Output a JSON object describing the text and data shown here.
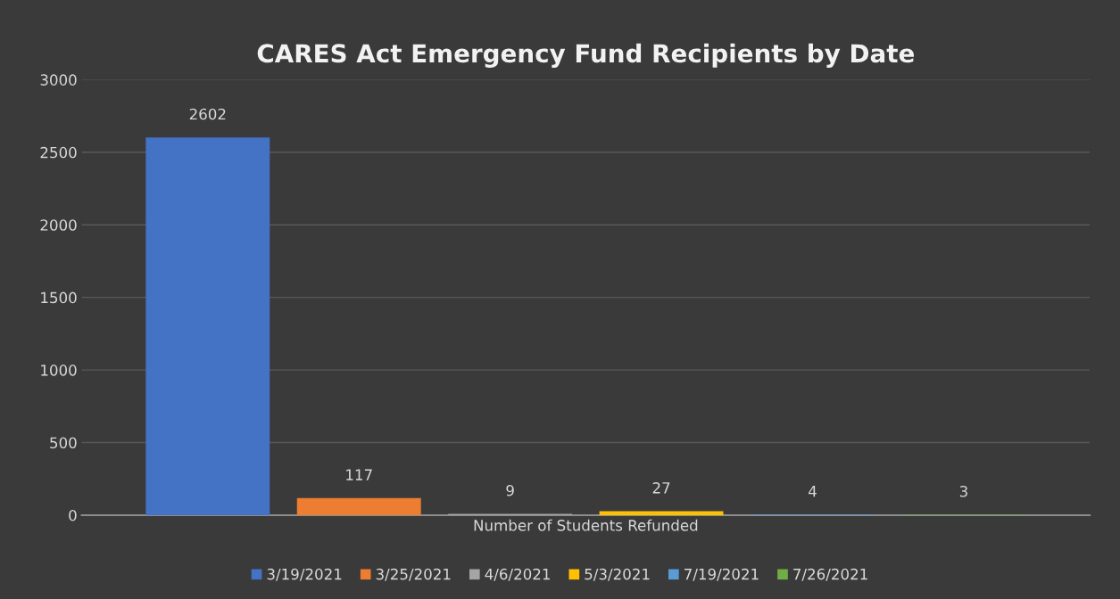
{
  "chart_data": {
    "type": "bar",
    "title": "CARES Act Emergency Fund Recipients by Date",
    "categories": [
      "Number of Students Refunded"
    ],
    "series": [
      {
        "name": "3/19/2021",
        "color": "#4472c4",
        "values": [
          2602
        ]
      },
      {
        "name": "3/25/2021",
        "color": "#ed7d31",
        "values": [
          117
        ]
      },
      {
        "name": "4/6/2021",
        "color": "#a5a5a5",
        "values": [
          9
        ]
      },
      {
        "name": "5/3/2021",
        "color": "#ffc000",
        "values": [
          27
        ]
      },
      {
        "name": "7/19/2021",
        "color": "#5b9bd5",
        "values": [
          4
        ]
      },
      {
        "name": "7/26/2021",
        "color": "#70ad47",
        "values": [
          3
        ]
      }
    ],
    "ylim": [
      0,
      3000
    ],
    "yticks": [
      0,
      500,
      1000,
      1500,
      2000,
      2500,
      3000
    ],
    "grid": "y",
    "legend": "bottom",
    "data_labels": true
  }
}
